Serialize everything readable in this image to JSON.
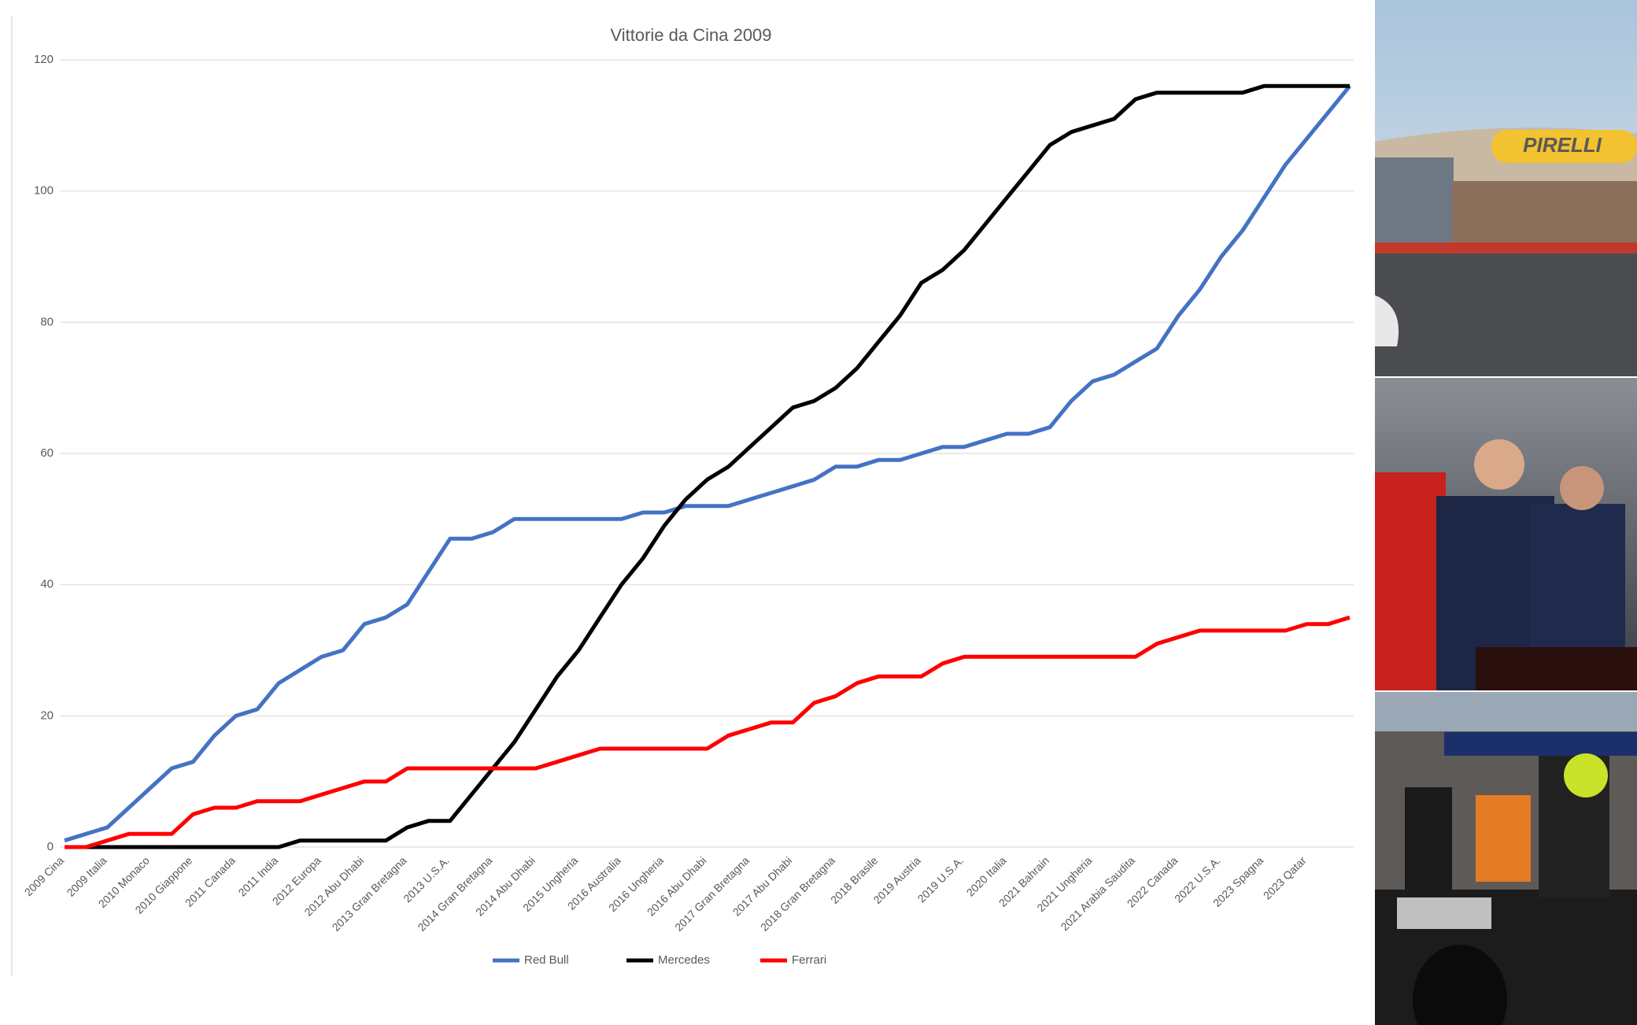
{
  "chart_data": {
    "type": "line",
    "title": "Vittorie da Cina 2009",
    "categories": [
      "2009 Cina",
      null,
      "2009 Italia",
      null,
      "2010 Monaco",
      null,
      "2010 Giappone",
      null,
      "2011 Canada",
      null,
      "2011 India",
      null,
      "2012 Europa",
      null,
      "2012 Abu Dhabi",
      null,
      "2013 Gran Bretagna",
      null,
      "2013 U.S.A.",
      null,
      "2014 Gran Bretagna",
      null,
      "2014 Abu Dhabi",
      null,
      "2015 Ungheria",
      null,
      "2016 Australia",
      null,
      "2016 Ungheria",
      null,
      "2016 Abu Dhabi",
      null,
      "2017 Gran Bretagna",
      null,
      "2017 Abu Dhabi",
      null,
      "2018 Gran Bretagna",
      null,
      "2018 Brasile",
      null,
      "2019 Austria",
      null,
      "2019 U.S.A.",
      null,
      "2020 Italia",
      null,
      "2021 Bahrain",
      null,
      "2021 Ungheria",
      null,
      "2021 Arabia Saudita",
      null,
      "2022 Canada",
      null,
      "2022 U.S.A.",
      null,
      "2023 Spagna",
      null,
      "2023 Qatar",
      null,
      null
    ],
    "series": [
      {
        "name": "Red Bull",
        "color": "#4472c4",
        "values": [
          1,
          2,
          3,
          6,
          9,
          12,
          13,
          17,
          20,
          21,
          25,
          27,
          29,
          30,
          34,
          35,
          37,
          42,
          47,
          47,
          48,
          50,
          50,
          50,
          50,
          50,
          50,
          51,
          51,
          52,
          52,
          52,
          53,
          54,
          55,
          56,
          58,
          58,
          59,
          59,
          60,
          61,
          61,
          62,
          63,
          63,
          64,
          68,
          71,
          72,
          74,
          76,
          81,
          85,
          90,
          94,
          99,
          104,
          108,
          112,
          116
        ]
      },
      {
        "name": "Mercedes",
        "color": "#000000",
        "values": [
          0,
          0,
          0,
          0,
          0,
          0,
          0,
          0,
          0,
          0,
          0,
          1,
          1,
          1,
          1,
          1,
          3,
          4,
          4,
          8,
          12,
          16,
          21,
          26,
          30,
          35,
          40,
          44,
          49,
          53,
          56,
          58,
          61,
          64,
          67,
          68,
          70,
          73,
          77,
          81,
          86,
          88,
          91,
          95,
          99,
          103,
          107,
          109,
          110,
          111,
          114,
          115,
          115,
          115,
          115,
          115,
          116,
          116,
          116,
          116,
          116
        ]
      },
      {
        "name": "Ferrari",
        "color": "#ff0000",
        "values": [
          0,
          0,
          1,
          2,
          2,
          2,
          5,
          6,
          6,
          7,
          7,
          7,
          8,
          9,
          10,
          10,
          12,
          12,
          12,
          12,
          12,
          12,
          12,
          13,
          14,
          15,
          15,
          15,
          15,
          15,
          15,
          17,
          18,
          19,
          19,
          22,
          23,
          25,
          26,
          26,
          26,
          28,
          29,
          29,
          29,
          29,
          29,
          29,
          29,
          29,
          29,
          31,
          32,
          33,
          33,
          33,
          33,
          33,
          34,
          34,
          35
        ]
      }
    ],
    "ylim": [
      0,
      120
    ],
    "yticks": [
      0,
      20,
      40,
      60,
      80,
      100,
      120
    ],
    "grid": true,
    "legend": "bottom"
  }
}
